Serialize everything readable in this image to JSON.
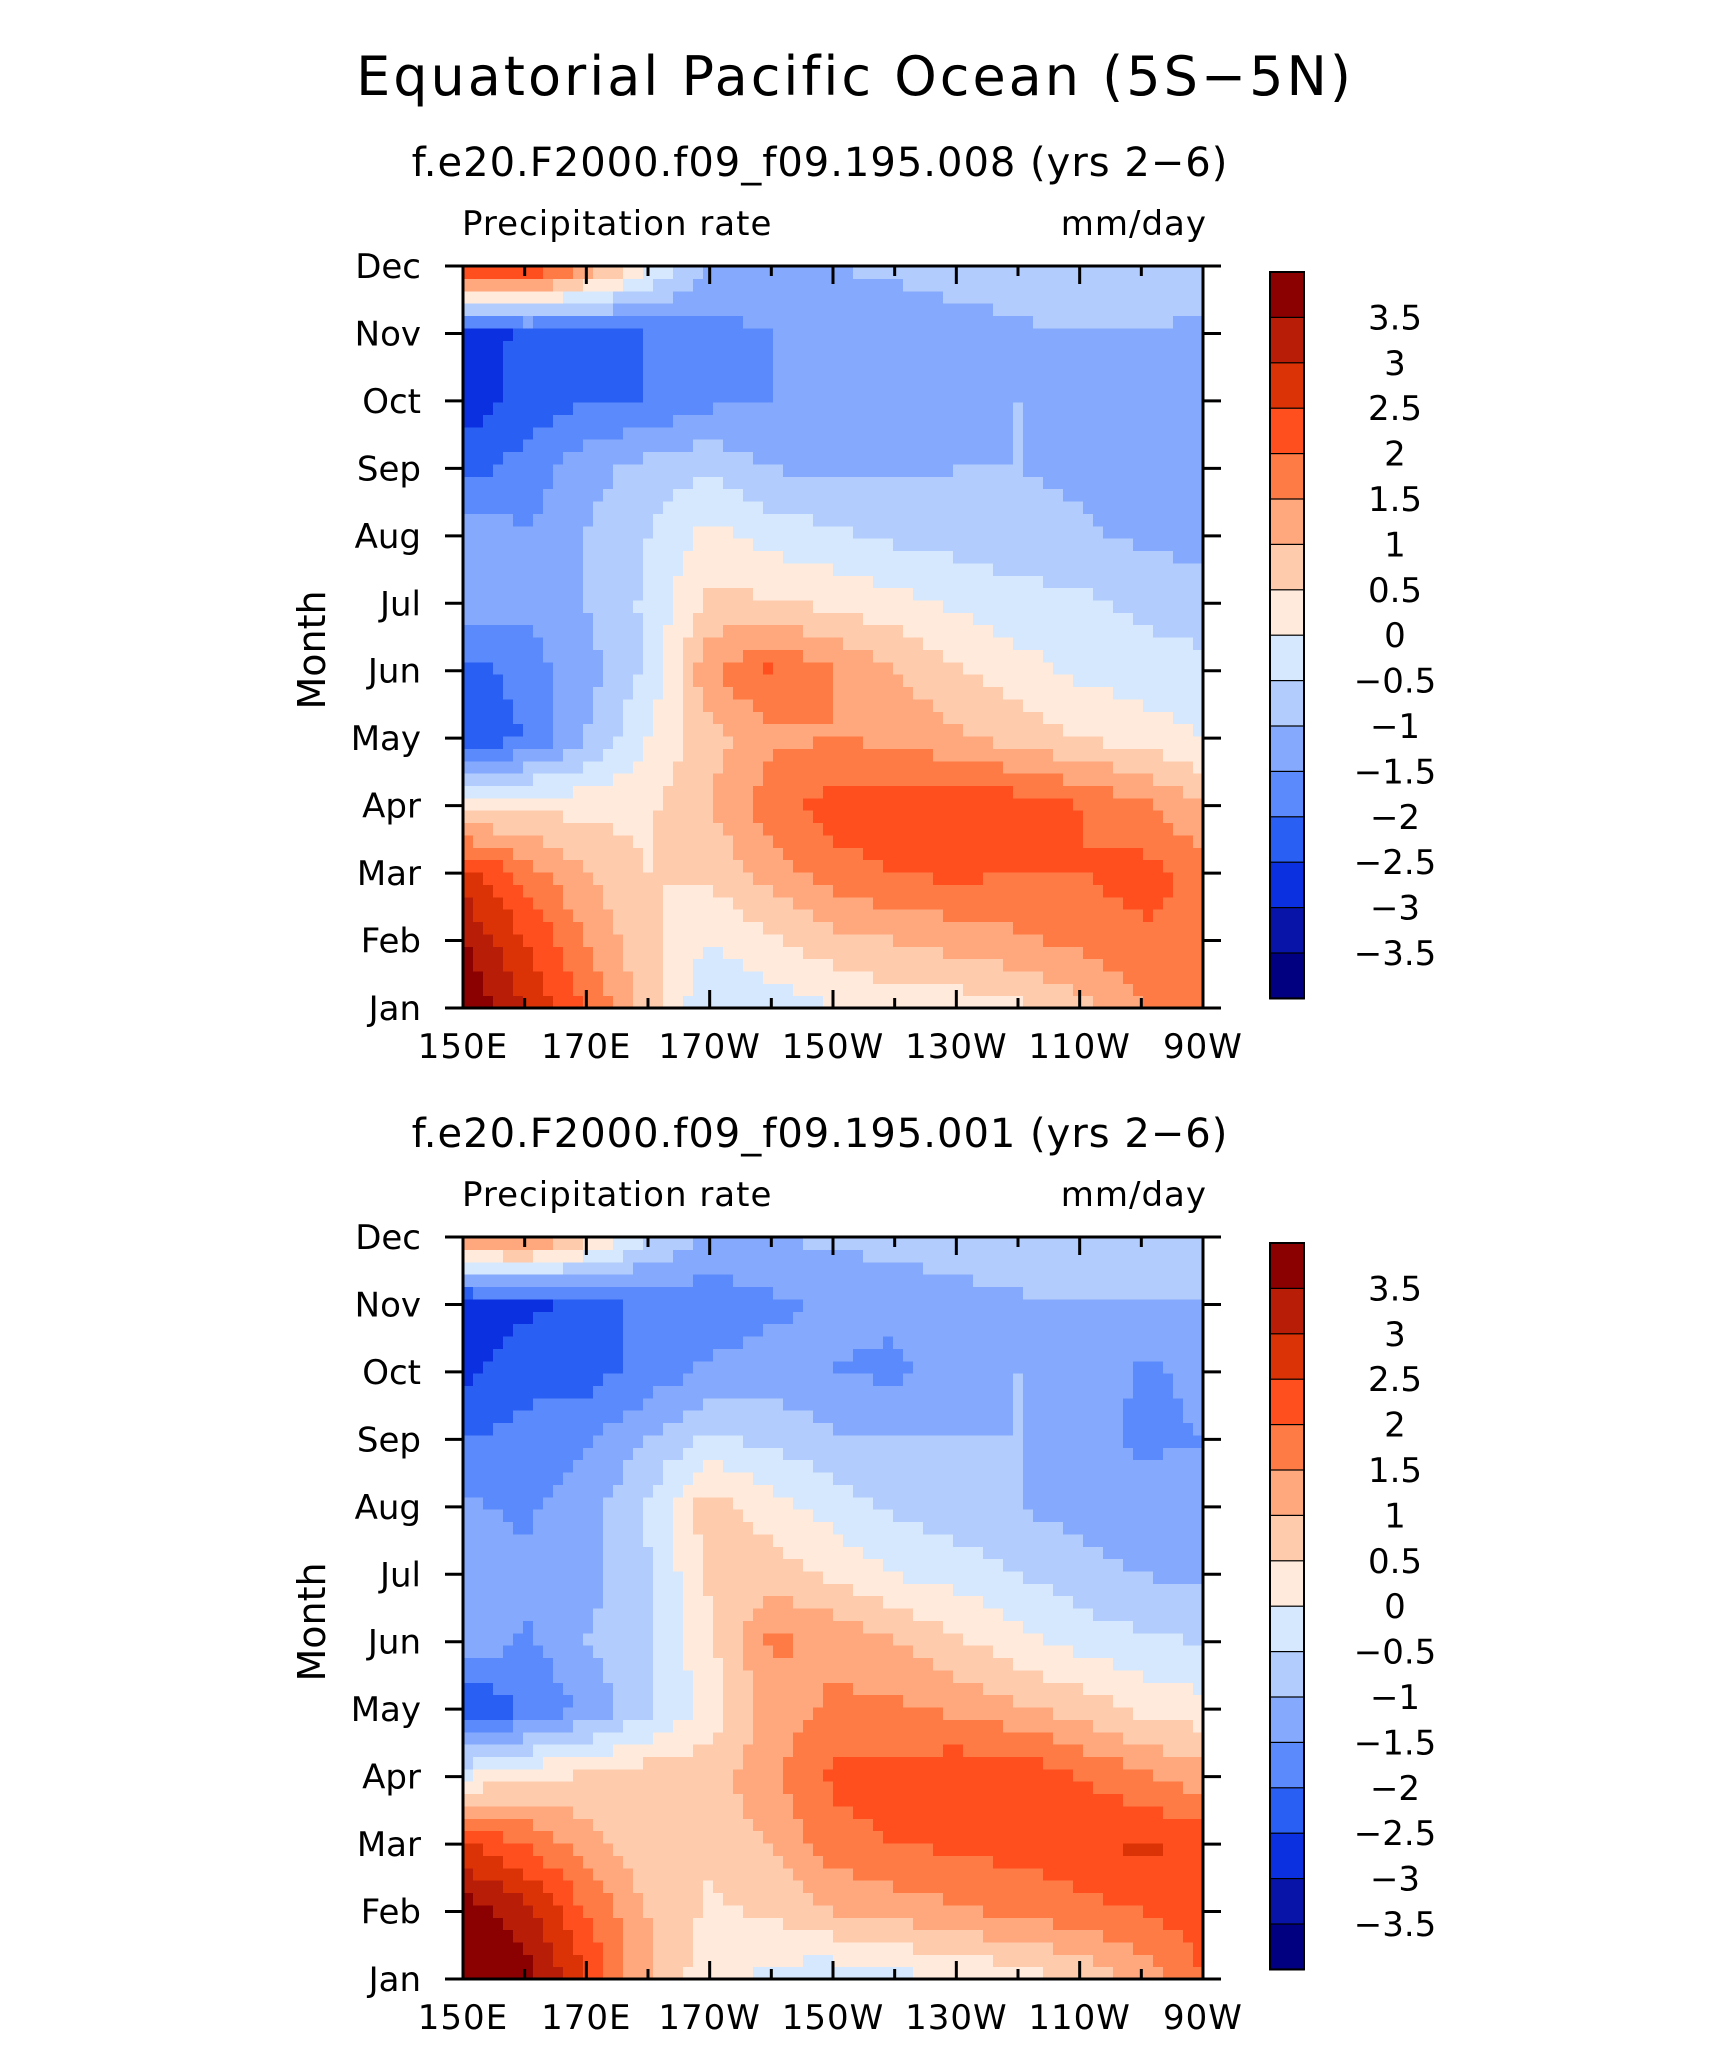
{
  "figure": {
    "title": "Equatorial Pacific Ocean (5S−5N)"
  },
  "palette": {
    "levels": [
      "3.5",
      "3",
      "2.5",
      "2",
      "1.5",
      "1",
      "0.5",
      "0",
      "−0.5",
      "−1",
      "−1.5",
      "−2",
      "−2.5",
      "−3",
      "−3.5"
    ],
    "colors": [
      "#8b0000",
      "#b81d07",
      "#db3305",
      "#ff4f1f",
      "#ff7b45",
      "#ffa77d",
      "#ffcbad",
      "#ffeadb",
      "#d6e8fd",
      "#b2cdfd",
      "#85a9fc",
      "#5a8afb",
      "#2a5ff4",
      "#0a30e0",
      "#0814a8",
      "#000080"
    ]
  },
  "chart_data": [
    {
      "type": "heatmap",
      "subtitle": "f.e20.F2000.f09_f09.195.008 (yrs 2−6)",
      "left_label": "Precipitation rate",
      "right_label": "mm/day",
      "ylabel": "Month",
      "x_ticks": [
        "150E",
        "170E",
        "170W",
        "150W",
        "130W",
        "110W",
        "90W"
      ],
      "y_ticks": [
        "Jan",
        "Feb",
        "Mar",
        "Apr",
        "May",
        "Jun",
        "Jul",
        "Aug",
        "Sep",
        "Oct",
        "Nov",
        "Dec"
      ],
      "units": "mm/day",
      "x_range": [
        "150E",
        "90W"
      ],
      "y_range": [
        "Jan",
        "Dec"
      ],
      "contour_levels": [
        -3.5,
        -3,
        -2.5,
        -2,
        -1.5,
        -1,
        -0.5,
        0,
        0.5,
        1,
        1.5,
        2,
        2.5,
        3,
        3.5
      ],
      "grid_x_lon": [
        150,
        160,
        170,
        180,
        190,
        200,
        210,
        220,
        230,
        240,
        250,
        260,
        270
      ],
      "grid_y_month": [
        1,
        2,
        3,
        4,
        5,
        6,
        7,
        8,
        9,
        10,
        11,
        12
      ],
      "values": [
        [
          4.0,
          3.0,
          2.0,
          0.8,
          -0.5,
          -0.3,
          0.0,
          0.2,
          0.2,
          0.4,
          0.8,
          1.4,
          2.0
        ],
        [
          3.5,
          2.5,
          1.5,
          0.6,
          0.0,
          0.4,
          0.8,
          1.0,
          1.2,
          1.4,
          1.6,
          1.9,
          2.0
        ],
        [
          2.8,
          1.8,
          1.0,
          0.5,
          0.6,
          1.2,
          1.8,
          2.0,
          2.1,
          2.0,
          2.0,
          2.2,
          1.8
        ],
        [
          0.2,
          0.4,
          0.3,
          0.4,
          1.0,
          1.8,
          2.2,
          2.3,
          2.4,
          2.3,
          2.0,
          1.6,
          1.0
        ],
        [
          -2.5,
          -2.0,
          -1.0,
          0.0,
          0.8,
          1.4,
          1.5,
          1.4,
          1.1,
          0.8,
          0.5,
          0.3,
          0.0
        ],
        [
          -2.2,
          -1.8,
          -1.2,
          -0.4,
          1.4,
          2.1,
          1.5,
          1.0,
          0.6,
          0.2,
          -0.1,
          -0.3,
          -0.4
        ],
        [
          -1.2,
          -1.4,
          -1.0,
          -0.4,
          0.6,
          0.6,
          0.4,
          0.2,
          -0.1,
          -0.3,
          -0.4,
          -0.6,
          -0.7
        ],
        [
          -1.0,
          -1.5,
          -1.0,
          -0.5,
          0.2,
          -0.2,
          -0.4,
          -0.6,
          -0.7,
          -0.8,
          -0.9,
          -1.1,
          -1.2
        ],
        [
          -2.2,
          -1.8,
          -1.2,
          -0.8,
          -0.6,
          -1.0,
          -1.1,
          -1.1,
          -1.0,
          -1.0,
          -1.1,
          -1.3,
          -1.3
        ],
        [
          -2.8,
          -2.3,
          -2.0,
          -2.0,
          -1.6,
          -1.5,
          -1.4,
          -1.4,
          -1.2,
          -1.0,
          -1.1,
          -1.5,
          -1.2
        ],
        [
          -2.8,
          -2.4,
          -2.2,
          -2.0,
          -1.7,
          -1.5,
          -1.4,
          -1.3,
          -1.2,
          -1.1,
          -1.0,
          -1.0,
          -1.2
        ],
        [
          3.0,
          2.8,
          1.5,
          0.2,
          -1.0,
          -1.1,
          -1.0,
          -0.9,
          -0.8,
          -0.7,
          -0.6,
          -0.6,
          -0.5
        ]
      ]
    },
    {
      "type": "heatmap",
      "subtitle": "f.e20.F2000.f09_f09.195.001 (yrs 2−6)",
      "left_label": "Precipitation rate",
      "right_label": "mm/day",
      "ylabel": "Month",
      "x_ticks": [
        "150E",
        "170E",
        "170W",
        "150W",
        "130W",
        "110W",
        "90W"
      ],
      "y_ticks": [
        "Jan",
        "Feb",
        "Mar",
        "Apr",
        "May",
        "Jun",
        "Jul",
        "Aug",
        "Sep",
        "Oct",
        "Nov",
        "Dec"
      ],
      "units": "mm/day",
      "x_range": [
        "150E",
        "90W"
      ],
      "y_range": [
        "Jan",
        "Dec"
      ],
      "contour_levels": [
        -3.5,
        -3,
        -2.5,
        -2,
        -1.5,
        -1,
        -0.5,
        0,
        0.5,
        1,
        1.5,
        2,
        2.5,
        3,
        3.5
      ],
      "grid_x_lon": [
        150,
        160,
        170,
        180,
        190,
        200,
        210,
        220,
        230,
        240,
        250,
        260,
        270
      ],
      "grid_y_month": [
        1,
        2,
        3,
        4,
        5,
        6,
        7,
        8,
        9,
        10,
        11,
        12
      ],
      "values": [
        [
          4.0,
          3.8,
          2.5,
          1.0,
          0.2,
          -0.2,
          -0.4,
          -0.2,
          0.0,
          0.2,
          0.6,
          1.2,
          2.0
        ],
        [
          3.8,
          3.2,
          2.0,
          1.0,
          0.4,
          0.6,
          1.0,
          1.2,
          1.4,
          1.6,
          1.8,
          2.0,
          2.3
        ],
        [
          2.6,
          2.0,
          1.2,
          0.6,
          0.6,
          1.0,
          1.8,
          2.0,
          2.1,
          2.2,
          2.4,
          2.6,
          2.4
        ],
        [
          0.0,
          0.4,
          0.6,
          0.8,
          0.8,
          1.4,
          2.1,
          2.2,
          2.4,
          2.5,
          2.0,
          1.6,
          1.2
        ],
        [
          -2.6,
          -2.0,
          -1.4,
          -0.6,
          0.2,
          1.2,
          1.6,
          1.6,
          1.4,
          1.1,
          0.8,
          0.4,
          0.2
        ],
        [
          -1.0,
          -1.6,
          -1.0,
          -0.5,
          0.4,
          1.6,
          1.4,
          1.0,
          0.6,
          0.2,
          -0.2,
          -0.4,
          -0.5
        ],
        [
          -1.2,
          -1.4,
          -1.2,
          -0.6,
          0.6,
          0.8,
          0.4,
          0.0,
          -0.2,
          -0.5,
          -0.8,
          -1.0,
          -1.1
        ],
        [
          -1.4,
          -1.6,
          -1.2,
          -0.4,
          0.8,
          0.2,
          -0.2,
          -0.6,
          -0.8,
          -1.0,
          -1.2,
          -1.3,
          -1.2
        ],
        [
          -2.0,
          -1.8,
          -1.6,
          -1.0,
          -0.4,
          -0.6,
          -0.9,
          -1.0,
          -1.0,
          -1.0,
          -1.3,
          -1.6,
          -1.5
        ],
        [
          -2.6,
          -2.2,
          -2.2,
          -1.8,
          -1.4,
          -1.3,
          -1.5,
          -1.6,
          -1.2,
          -1.0,
          -1.0,
          -1.6,
          -1.4
        ],
        [
          -2.8,
          -2.6,
          -2.4,
          -1.8,
          -1.8,
          -1.6,
          -1.4,
          -1.4,
          -1.2,
          -1.1,
          -1.0,
          -1.0,
          -1.1
        ],
        [
          1.5,
          1.8,
          0.8,
          -0.5,
          -1.1,
          -1.0,
          -0.9,
          -0.8,
          -0.7,
          -0.6,
          -0.6,
          -0.6,
          -0.5
        ]
      ]
    }
  ]
}
